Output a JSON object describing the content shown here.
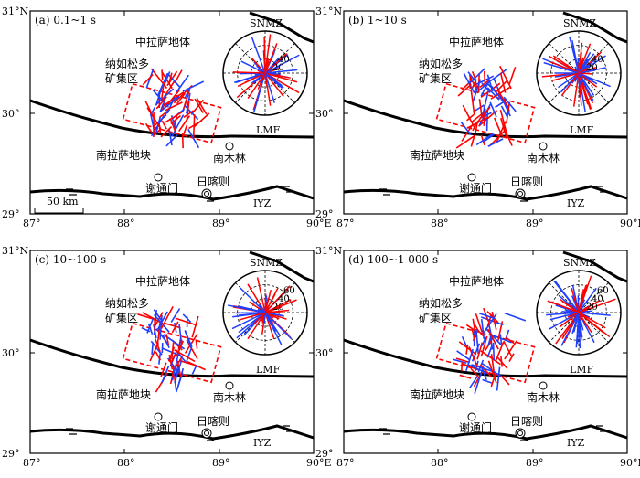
{
  "panels": [
    {
      "label": "(a) 0.1~1 s",
      "radial_ticks": [
        "20",
        "40"
      ]
    },
    {
      "label": "(b) 1~10 s",
      "radial_ticks": [
        "20",
        "40"
      ]
    },
    {
      "label": "(c) 10~100 s",
      "radial_ticks": [
        "20",
        "40",
        "60"
      ]
    },
    {
      "label": "(d) 100~1 000 s",
      "radial_ticks": [
        "20",
        "40",
        "60"
      ]
    }
  ],
  "map_labels": {
    "snmz": "SNMZ",
    "zhonglasa": "中拉萨地体",
    "nangru_line1": "纳如松多",
    "nangru_line2": "矿集区",
    "lmf": "LMF",
    "nanlasa": "南拉萨地块",
    "nanmulin": "南木林",
    "xietongmen": "谢通门",
    "rikaze": "日喀则",
    "iyz": "IYZ",
    "scale": "50 km"
  },
  "axes": {
    "x_ticks": [
      "87°",
      "88°",
      "89°",
      "90°E"
    ],
    "y_ticks": [
      "31°N",
      "30°",
      "29°"
    ]
  },
  "colors": {
    "red": "#ff0000",
    "blue": "#1f3fff",
    "black": "#000000"
  }
}
